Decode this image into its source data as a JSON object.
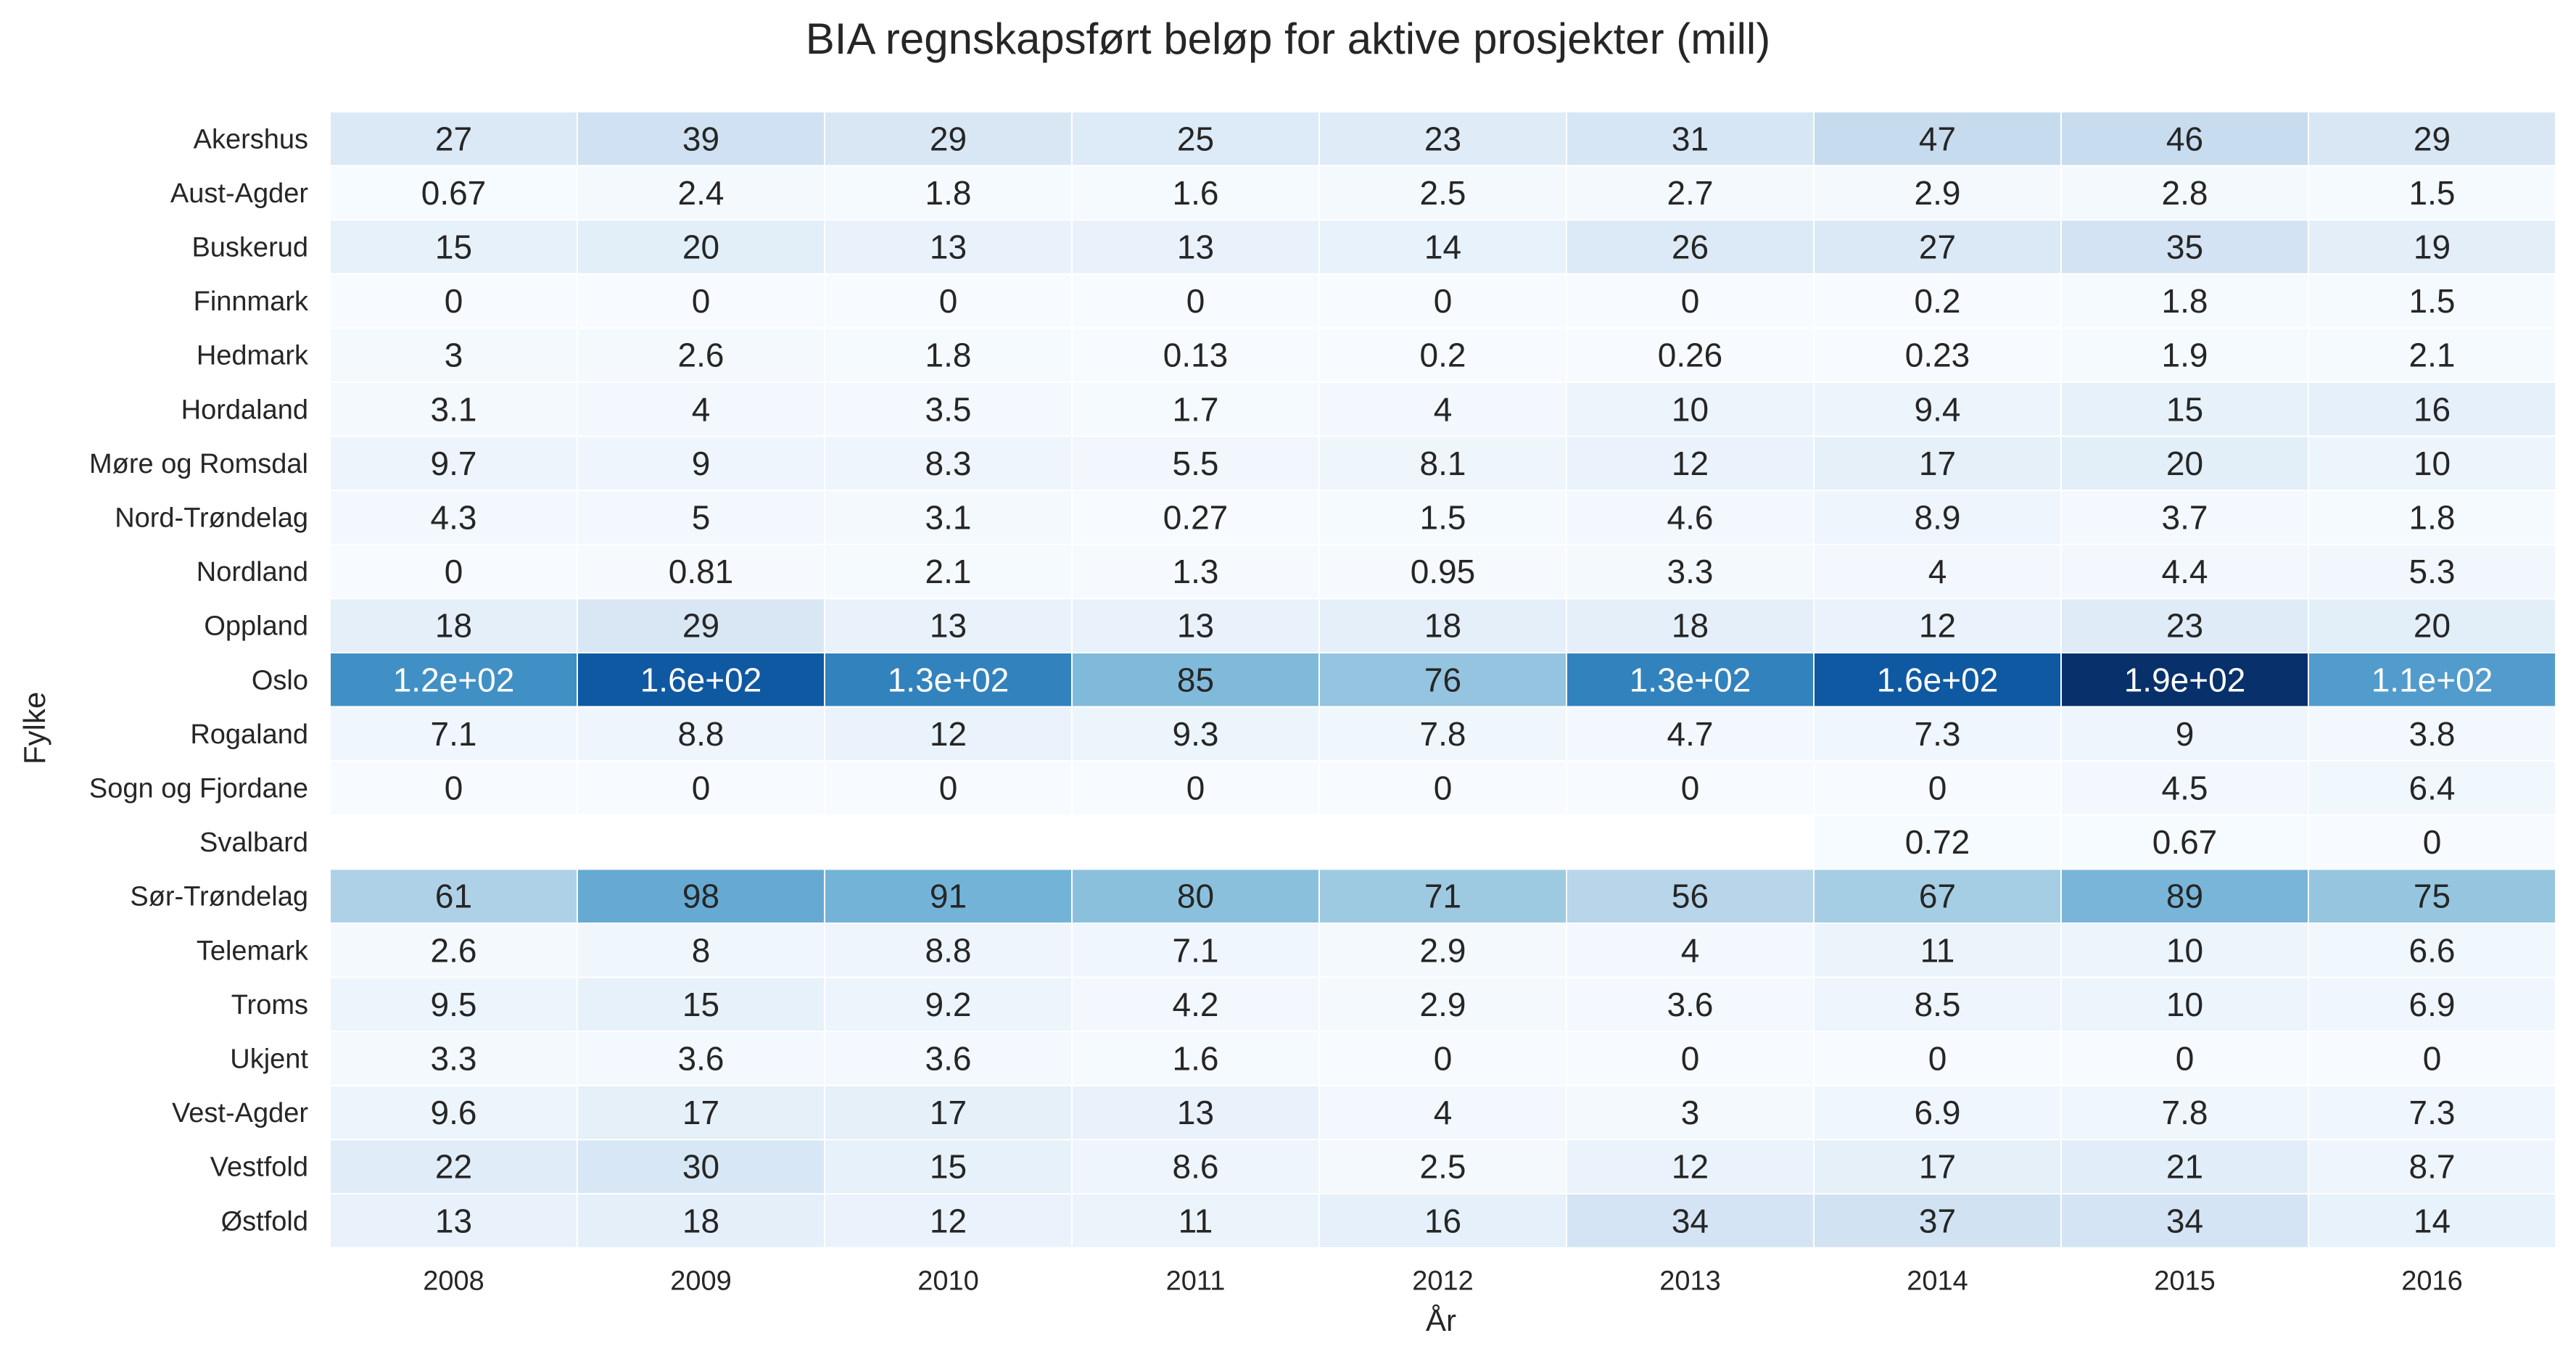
{
  "chart_data": {
    "type": "heatmap",
    "title": "BIA regnskapsført beløp for aktive prosjekter (mill)",
    "xlabel": "År",
    "ylabel": "Fylke",
    "x": [
      "2008",
      "2009",
      "2010",
      "2011",
      "2012",
      "2013",
      "2014",
      "2015",
      "2016"
    ],
    "y": [
      "Akershus",
      "Aust-Agder",
      "Buskerud",
      "Finnmark",
      "Hedmark",
      "Hordaland",
      "Møre og Romsdal",
      "Nord-Trøndelag",
      "Nordland",
      "Oppland",
      "Oslo",
      "Rogaland",
      "Sogn og Fjordane",
      "Svalbard",
      "Sør-Trøndelag",
      "Telemark",
      "Troms",
      "Ukjent",
      "Vest-Agder",
      "Vestfold",
      "Østfold"
    ],
    "values": [
      [
        27,
        39,
        29,
        25,
        23,
        31,
        47,
        46,
        29
      ],
      [
        0.67,
        2.4,
        1.8,
        1.6,
        2.5,
        2.7,
        2.9,
        2.8,
        1.5
      ],
      [
        15,
        20,
        13,
        13,
        14,
        26,
        27,
        35,
        19
      ],
      [
        0,
        0,
        0,
        0,
        0,
        0,
        0.2,
        1.8,
        1.5
      ],
      [
        3,
        2.6,
        1.8,
        0.13,
        0.2,
        0.26,
        0.23,
        1.9,
        2.1
      ],
      [
        3.1,
        4,
        3.5,
        1.7,
        4,
        10,
        9.4,
        15,
        16
      ],
      [
        9.7,
        9,
        8.3,
        5.5,
        8.1,
        12,
        17,
        20,
        10
      ],
      [
        4.3,
        5,
        3.1,
        0.27,
        1.5,
        4.6,
        8.9,
        3.7,
        1.8
      ],
      [
        0,
        0.81,
        2.1,
        1.3,
        0.95,
        3.3,
        4,
        4.4,
        5.3
      ],
      [
        18,
        29,
        13,
        13,
        18,
        18,
        12,
        23,
        20
      ],
      [
        120,
        160,
        130,
        85,
        76,
        130,
        160,
        190,
        110
      ],
      [
        7.1,
        8.8,
        12,
        9.3,
        7.8,
        4.7,
        7.3,
        9,
        3.8
      ],
      [
        0,
        0,
        0,
        0,
        0,
        0,
        0,
        4.5,
        6.4
      ],
      [
        null,
        null,
        null,
        null,
        null,
        null,
        0.72,
        0.67,
        0
      ],
      [
        61,
        98,
        91,
        80,
        71,
        56,
        67,
        89,
        75
      ],
      [
        2.6,
        8,
        8.8,
        7.1,
        2.9,
        4,
        11,
        10,
        6.6
      ],
      [
        9.5,
        15,
        9.2,
        4.2,
        2.9,
        3.6,
        8.5,
        10,
        6.9
      ],
      [
        3.3,
        3.6,
        3.6,
        1.6,
        0,
        0,
        0,
        0,
        0
      ],
      [
        9.6,
        17,
        17,
        13,
        4,
        3,
        6.9,
        7.8,
        7.3
      ],
      [
        22,
        30,
        15,
        8.6,
        2.5,
        12,
        17,
        21,
        8.7
      ],
      [
        13,
        18,
        12,
        11,
        16,
        34,
        37,
        34,
        14
      ]
    ],
    "labels": [
      [
        "27",
        "39",
        "29",
        "25",
        "23",
        "31",
        "47",
        "46",
        "29"
      ],
      [
        "0.67",
        "2.4",
        "1.8",
        "1.6",
        "2.5",
        "2.7",
        "2.9",
        "2.8",
        "1.5"
      ],
      [
        "15",
        "20",
        "13",
        "13",
        "14",
        "26",
        "27",
        "35",
        "19"
      ],
      [
        "0",
        "0",
        "0",
        "0",
        "0",
        "0",
        "0.2",
        "1.8",
        "1.5"
      ],
      [
        "3",
        "2.6",
        "1.8",
        "0.13",
        "0.2",
        "0.26",
        "0.23",
        "1.9",
        "2.1"
      ],
      [
        "3.1",
        "4",
        "3.5",
        "1.7",
        "4",
        "10",
        "9.4",
        "15",
        "16"
      ],
      [
        "9.7",
        "9",
        "8.3",
        "5.5",
        "8.1",
        "12",
        "17",
        "20",
        "10"
      ],
      [
        "4.3",
        "5",
        "3.1",
        "0.27",
        "1.5",
        "4.6",
        "8.9",
        "3.7",
        "1.8"
      ],
      [
        "0",
        "0.81",
        "2.1",
        "1.3",
        "0.95",
        "3.3",
        "4",
        "4.4",
        "5.3"
      ],
      [
        "18",
        "29",
        "13",
        "13",
        "18",
        "18",
        "12",
        "23",
        "20"
      ],
      [
        "1.2e+02",
        "1.6e+02",
        "1.3e+02",
        "85",
        "76",
        "1.3e+02",
        "1.6e+02",
        "1.9e+02",
        "1.1e+02"
      ],
      [
        "7.1",
        "8.8",
        "12",
        "9.3",
        "7.8",
        "4.7",
        "7.3",
        "9",
        "3.8"
      ],
      [
        "0",
        "0",
        "0",
        "0",
        "0",
        "0",
        "0",
        "4.5",
        "6.4"
      ],
      [
        "",
        "",
        "",
        "",
        "",
        "",
        "0.72",
        "0.67",
        "0"
      ],
      [
        "61",
        "98",
        "91",
        "80",
        "71",
        "56",
        "67",
        "89",
        "75"
      ],
      [
        "2.6",
        "8",
        "8.8",
        "7.1",
        "2.9",
        "4",
        "11",
        "10",
        "6.6"
      ],
      [
        "9.5",
        "15",
        "9.2",
        "4.2",
        "2.9",
        "3.6",
        "8.5",
        "10",
        "6.9"
      ],
      [
        "3.3",
        "3.6",
        "3.6",
        "1.6",
        "0",
        "0",
        "0",
        "0",
        "0"
      ],
      [
        "9.6",
        "17",
        "17",
        "13",
        "4",
        "3",
        "6.9",
        "7.8",
        "7.3"
      ],
      [
        "22",
        "30",
        "15",
        "8.6",
        "2.5",
        "12",
        "17",
        "21",
        "8.7"
      ],
      [
        "13",
        "18",
        "12",
        "11",
        "16",
        "34",
        "37",
        "34",
        "14"
      ]
    ],
    "colormap": "Blues",
    "colors": {
      "low": "#f7fbff",
      "high": "#08306b",
      "text_dark": "#262626",
      "text_light": "#ffffff"
    },
    "vmin": 0,
    "vmax": 190,
    "grid": false,
    "legend": "none"
  }
}
